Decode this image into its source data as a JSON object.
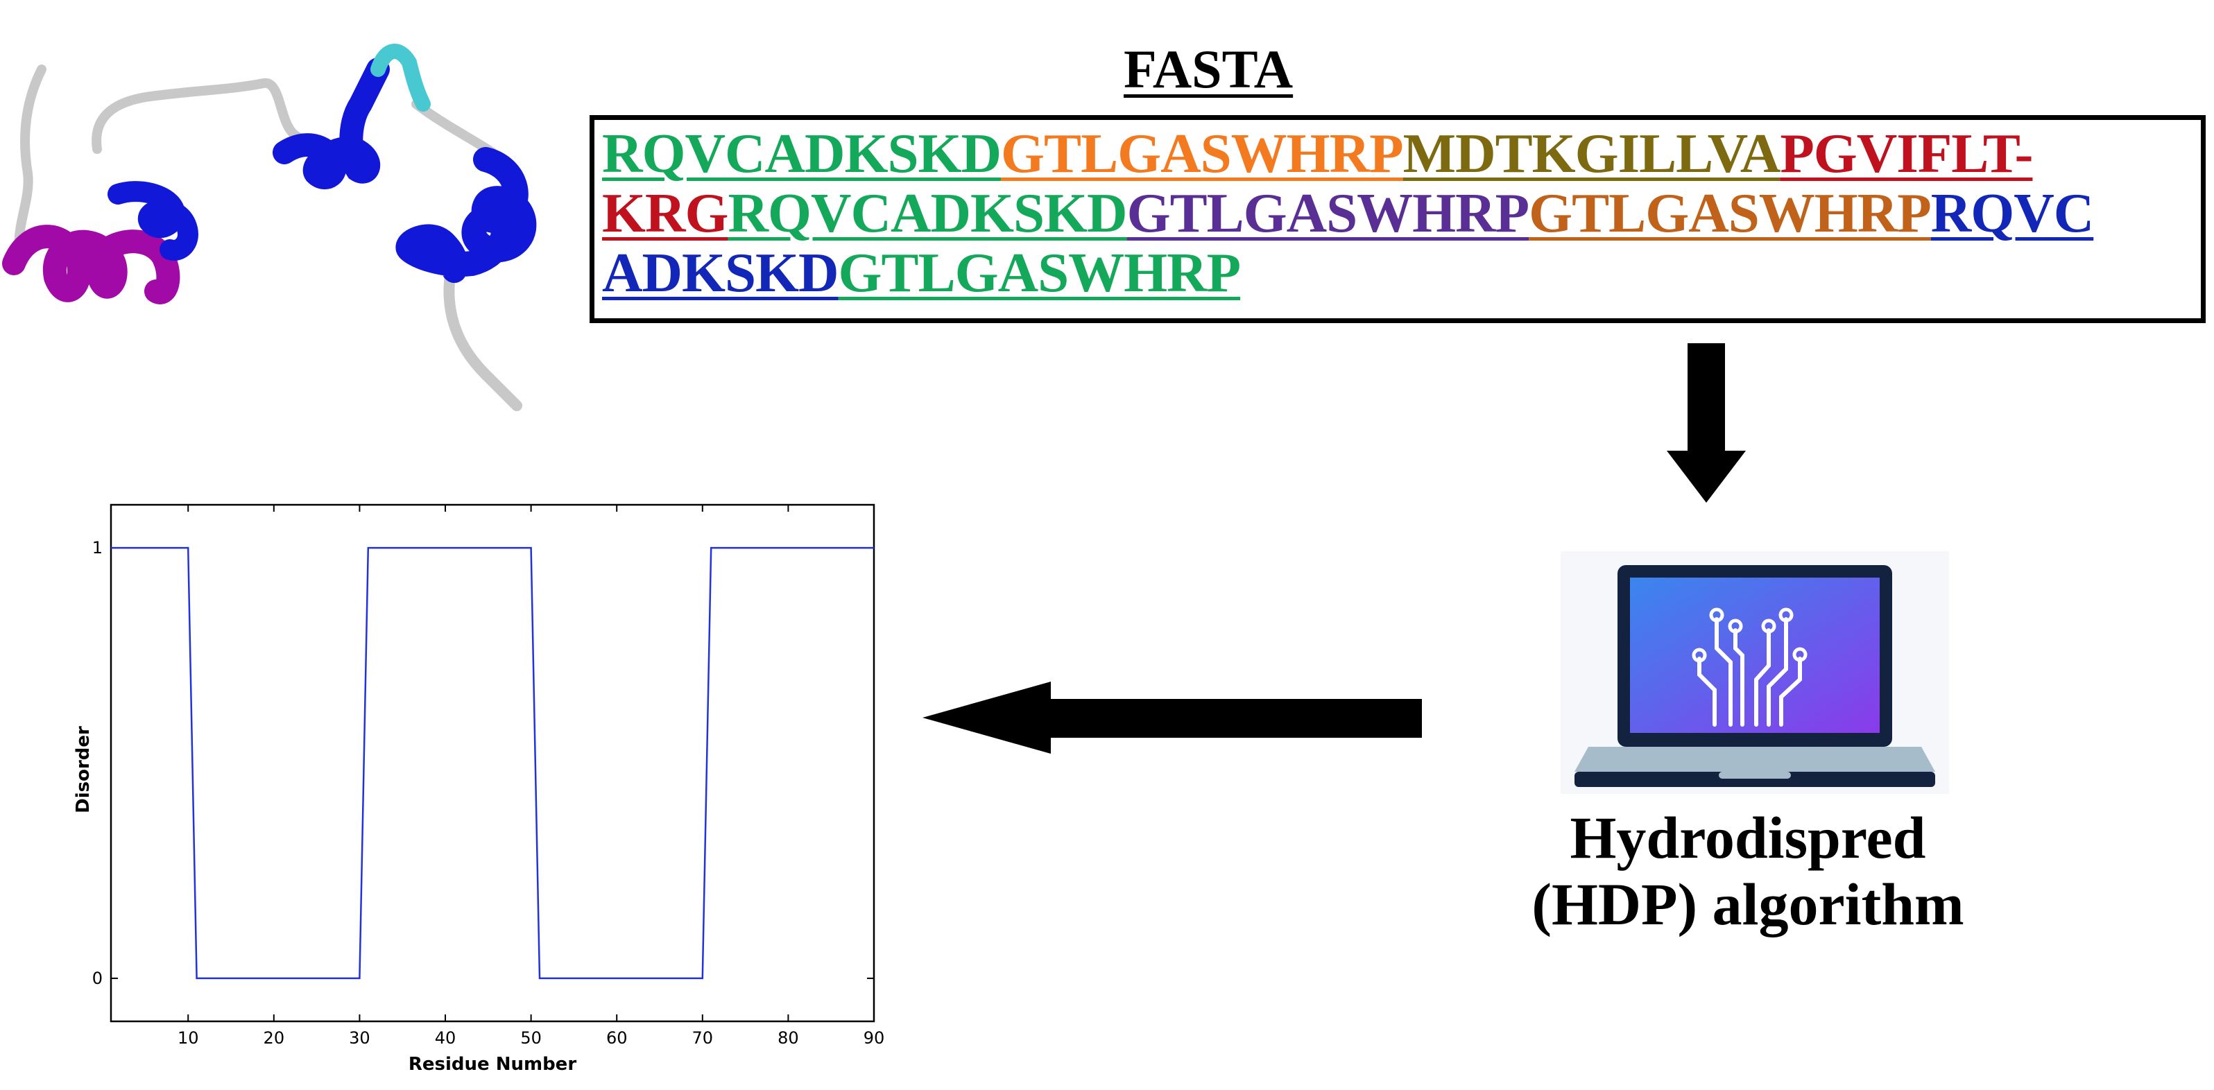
{
  "fasta": {
    "title": "FASTA",
    "lines": [
      [
        {
          "text": "RQVCADKSKD",
          "color": "#14a85a"
        },
        {
          "text": "GTLGASWHRP",
          "color": "#f47a20"
        },
        {
          "text": "MDTKGILLVA",
          "color": "#7d6a10"
        },
        {
          "text": "PGVIFLT-",
          "color": "#c0121e"
        }
      ],
      [
        {
          "text": "KRG",
          "color": "#c0121e"
        },
        {
          "text": "RQVCADKSKD",
          "color": "#14a85a"
        },
        {
          "text": "GTLGASWHRP",
          "color": "#5a2f95"
        },
        {
          "text": "GTLGASWHRP",
          "color": "#c0621a"
        },
        {
          "text": "RQVC",
          "color": "#1226b8"
        }
      ],
      [
        {
          "text": "ADKSKD",
          "color": "#1226b8"
        },
        {
          "text": "GTLGASWHRP",
          "color": "#14a85a"
        }
      ]
    ]
  },
  "algorithm": {
    "label_line1": "Hydrodispred",
    "label_line2": "(HDP) algorithm"
  },
  "protein": {
    "helix_colors": [
      "#a20aa8",
      "#1218d8",
      "#1218d8",
      "#1218d8"
    ],
    "turn_color": "#48c8d0",
    "coil_color": "#c8c8c8"
  },
  "chart_data": {
    "type": "line",
    "xlabel": "Residue Number",
    "ylabel": "Disorder",
    "xlim": [
      1,
      90
    ],
    "ylim": [
      -0.1,
      1.1
    ],
    "xticks": [
      10,
      20,
      30,
      40,
      50,
      60,
      70,
      80,
      90
    ],
    "yticks": [
      0,
      1
    ],
    "line_color": "#2233dd",
    "series": [
      {
        "x": [
          1,
          10,
          11,
          30,
          31,
          50,
          51,
          70,
          71,
          90
        ],
        "values": [
          1,
          1,
          0,
          0,
          1,
          1,
          0,
          0,
          1,
          1
        ]
      }
    ]
  }
}
